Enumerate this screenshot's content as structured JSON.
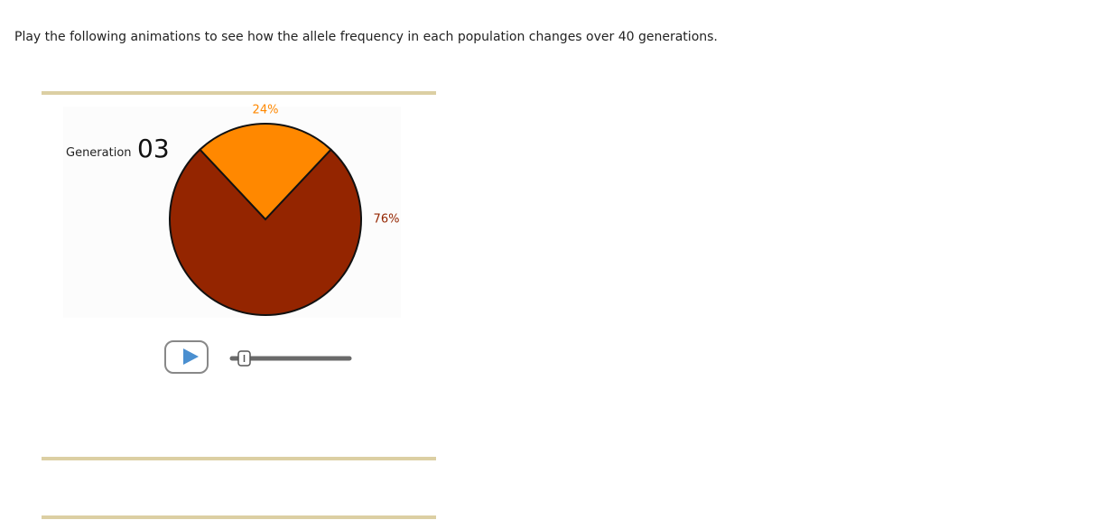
{
  "instruction": "Play the following animations to see how the allele frequency in each population changes over 40 generations.",
  "generation_label": "Generation",
  "generation": "03",
  "chart_data": {
    "type": "pie",
    "values": [
      24,
      76
    ],
    "value_labels": [
      "24%",
      "76%"
    ],
    "colors": [
      "#ff8800",
      "#942500"
    ]
  }
}
